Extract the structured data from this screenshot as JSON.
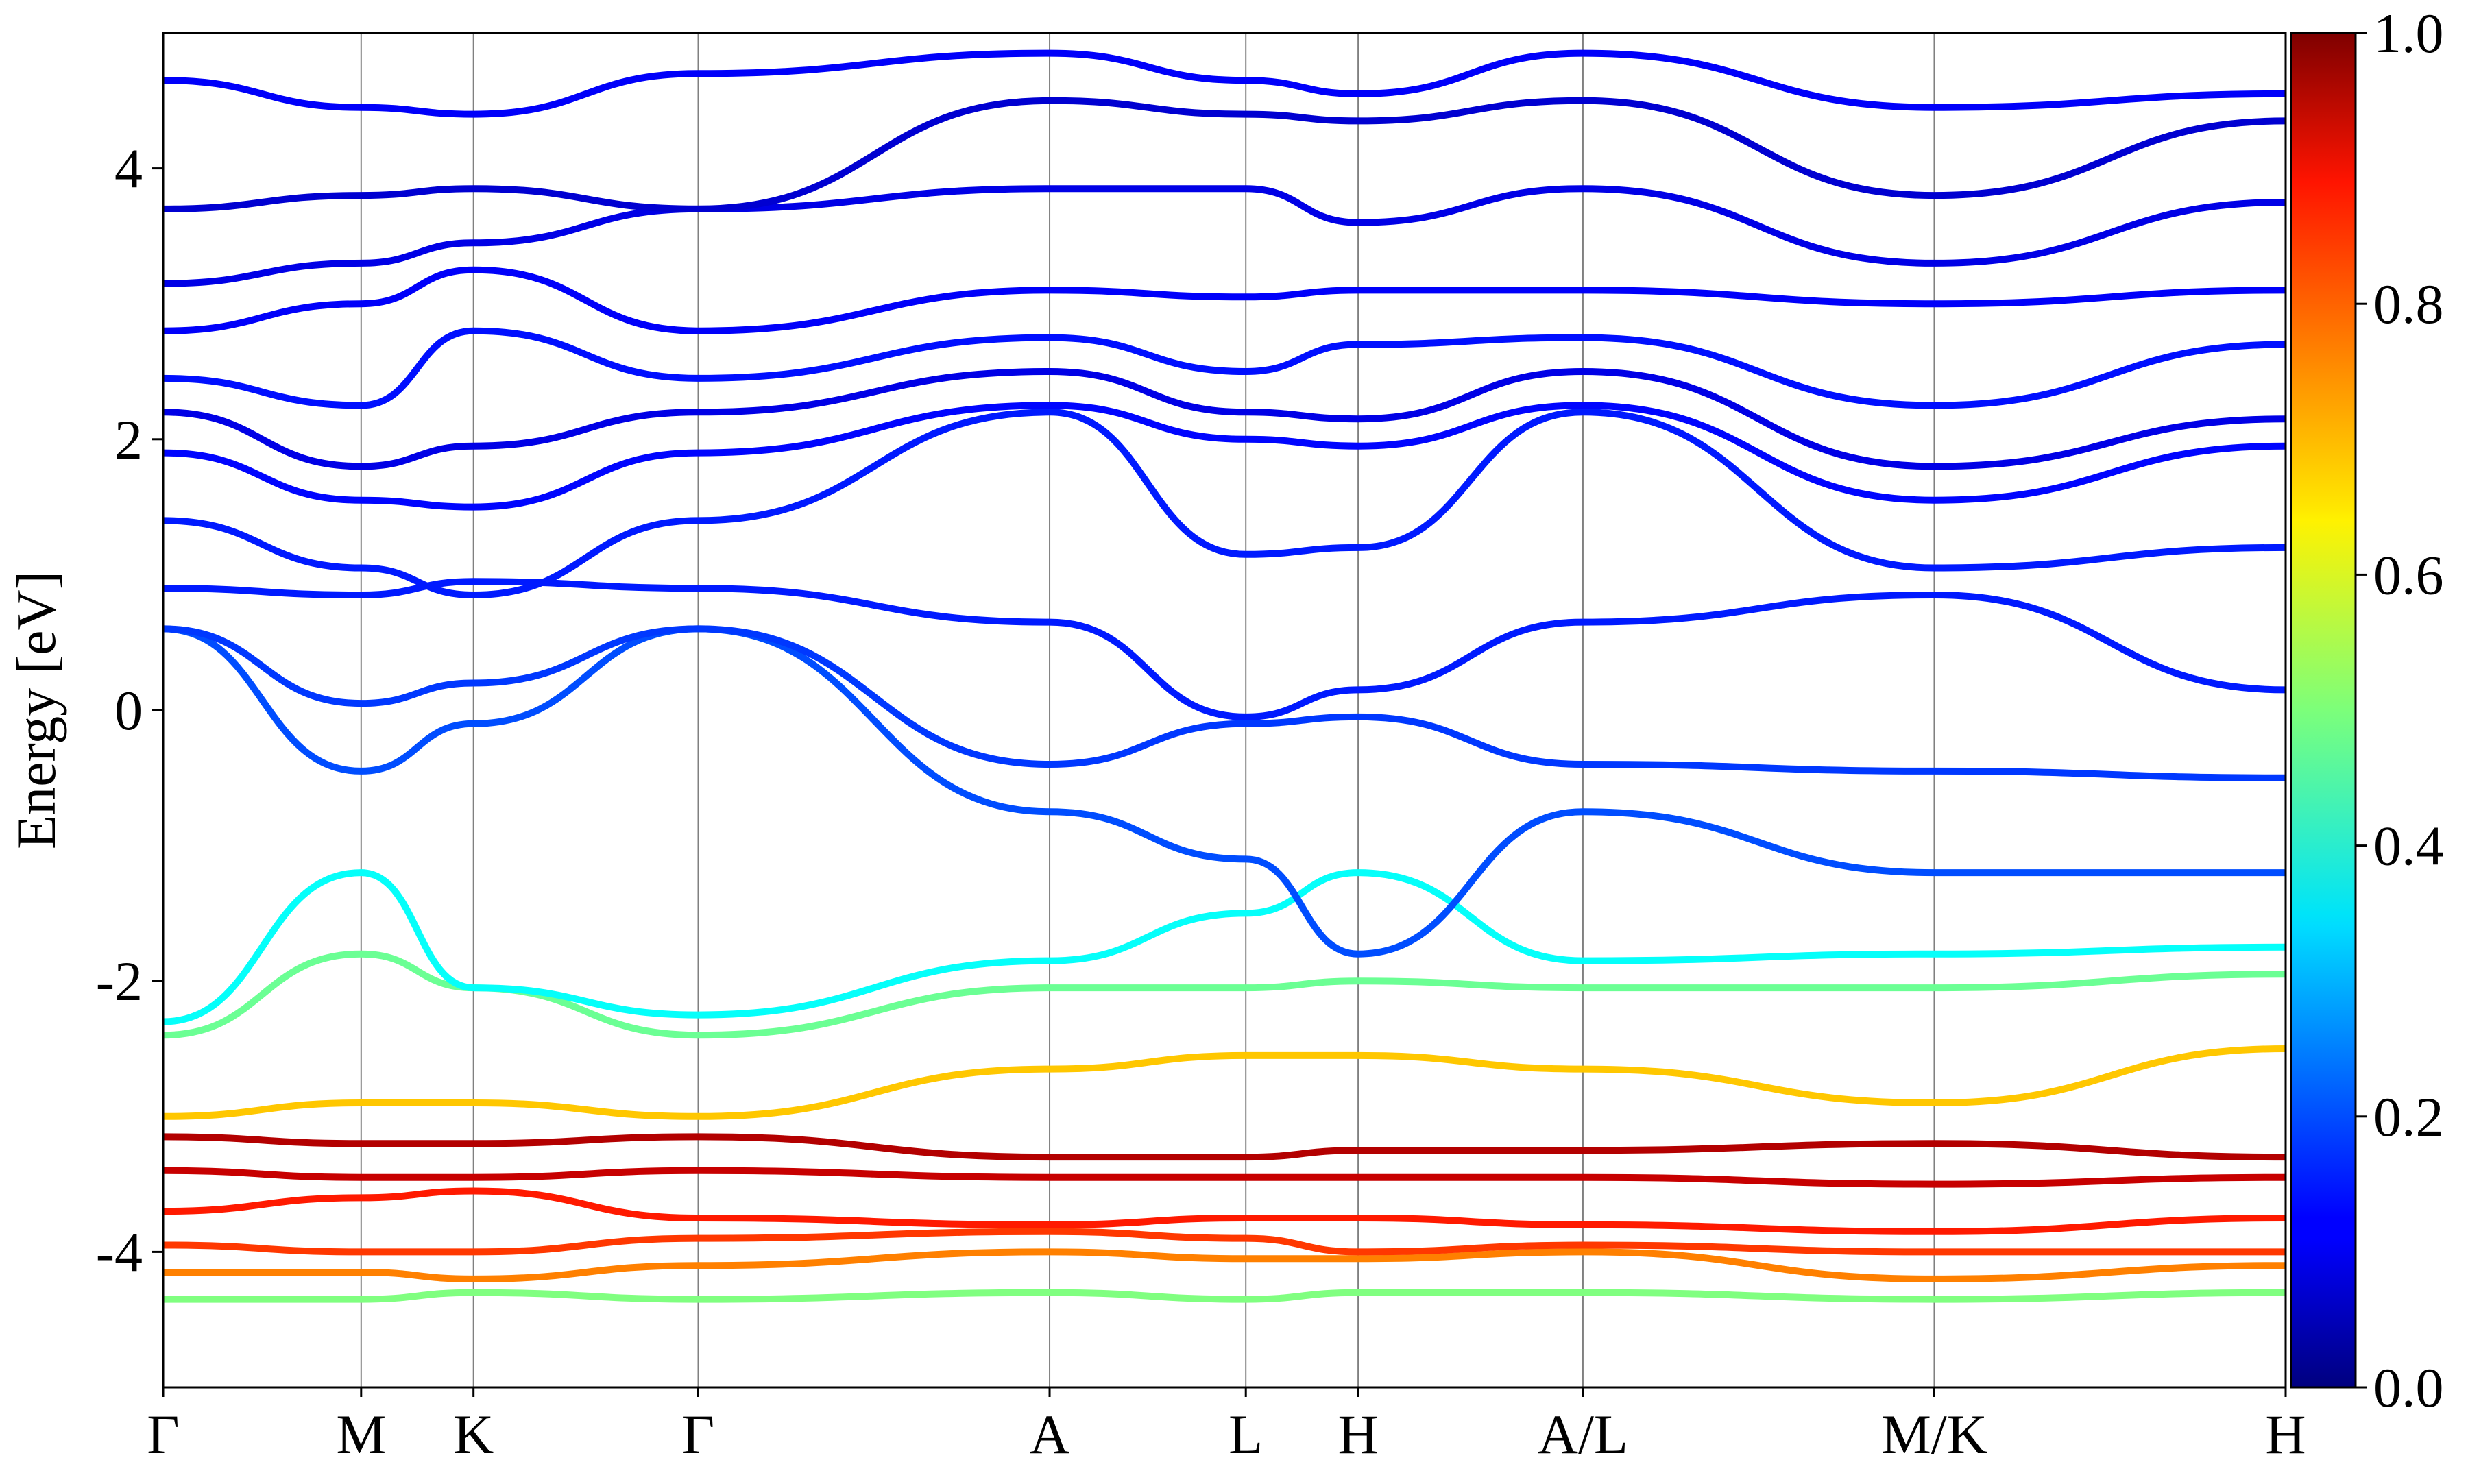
{
  "chart_data": {
    "type": "line",
    "title": "",
    "xlabel": "",
    "ylabel": "Energy [eV]",
    "ylim": [
      -5,
      5
    ],
    "xlim": [
      0,
      11.9
    ],
    "yticks": [
      -4,
      -2,
      0,
      2,
      4
    ],
    "ytick_labels": [
      "-4",
      "-2",
      "0",
      "2",
      "4"
    ],
    "kpoints": [
      {
        "label": "Γ",
        "x": 0
      },
      {
        "label": "M",
        "x": 1.11
      },
      {
        "label": "K",
        "x": 1.74
      },
      {
        "label": "Γ",
        "x": 3.0
      },
      {
        "label": "A",
        "x": 4.97
      },
      {
        "label": "L",
        "x": 6.07
      },
      {
        "label": "H",
        "x": 6.7
      },
      {
        "label": "A/L",
        "x": 7.96
      },
      {
        "label": "M/K",
        "x": 9.93
      },
      {
        "label": "H",
        "x": 11.9
      }
    ],
    "colorbar": {
      "colormap": "jet",
      "range": [
        0,
        1
      ],
      "ticks": [
        0,
        0.2,
        0.4,
        0.6,
        0.8,
        1
      ],
      "tick_labels": [
        "0.0",
        "0.2",
        "0.4",
        "0.6",
        "0.8",
        "1.0"
      ]
    },
    "bands": [
      {
        "x": [
          0,
          1.11,
          1.74,
          3.0,
          4.97,
          6.07,
          6.7,
          7.96,
          9.93,
          11.9
        ],
        "y": [
          -4.35,
          -4.35,
          -4.3,
          -4.35,
          -4.3,
          -4.35,
          -4.3,
          -4.3,
          -4.35,
          -4.3
        ],
        "weight": 0.5
      },
      {
        "x": [
          0,
          1.11,
          1.74,
          3.0,
          4.97,
          6.07,
          6.7,
          7.96,
          9.93,
          11.9
        ],
        "y": [
          -4.15,
          -4.15,
          -4.2,
          -4.1,
          -4.0,
          -4.05,
          -4.05,
          -4.0,
          -4.2,
          -4.1
        ],
        "weight": 0.75
      },
      {
        "x": [
          0,
          1.11,
          1.74,
          3.0,
          4.97,
          6.07,
          6.7,
          7.96,
          9.93,
          11.9
        ],
        "y": [
          -3.95,
          -4.0,
          -4.0,
          -3.9,
          -3.85,
          -3.9,
          -4.0,
          -3.95,
          -4.0,
          -4.0
        ],
        "weight": 0.82
      },
      {
        "x": [
          0,
          1.11,
          1.74,
          3.0,
          4.97,
          6.07,
          6.7,
          7.96,
          9.93,
          11.9
        ],
        "y": [
          -3.7,
          -3.6,
          -3.55,
          -3.75,
          -3.8,
          -3.75,
          -3.75,
          -3.8,
          -3.85,
          -3.75
        ],
        "weight": 0.85
      },
      {
        "x": [
          0,
          1.11,
          1.74,
          3.0,
          4.97,
          6.07,
          6.7,
          7.96,
          9.93,
          11.9
        ],
        "y": [
          -3.4,
          -3.45,
          -3.45,
          -3.4,
          -3.45,
          -3.45,
          -3.45,
          -3.45,
          -3.5,
          -3.45
        ],
        "weight": 0.93
      },
      {
        "x": [
          0,
          1.11,
          1.74,
          3.0,
          4.97,
          6.07,
          6.7,
          7.96,
          9.93,
          11.9
        ],
        "y": [
          -3.15,
          -3.2,
          -3.2,
          -3.15,
          -3.3,
          -3.3,
          -3.25,
          -3.25,
          -3.2,
          -3.3
        ],
        "weight": 0.95
      },
      {
        "x": [
          0,
          1.11,
          1.74,
          3.0,
          4.97,
          6.07,
          6.7,
          7.96,
          9.93,
          11.9
        ],
        "y": [
          -3.0,
          -2.9,
          -2.9,
          -3.0,
          -2.65,
          -2.55,
          -2.55,
          -2.65,
          -2.9,
          -2.5
        ],
        "weight": 0.68
      },
      {
        "x": [
          0,
          1.11,
          1.74,
          3.0,
          4.97,
          6.07,
          6.7,
          7.96,
          9.93,
          11.9
        ],
        "y": [
          -2.4,
          -1.8,
          -2.05,
          -2.4,
          -2.05,
          -2.05,
          -2.0,
          -2.05,
          -2.05,
          -1.95
        ],
        "weight": 0.48
      },
      {
        "x": [
          0,
          1.11,
          1.74,
          3.0,
          4.97,
          6.07,
          6.7,
          7.96,
          9.93,
          11.9
        ],
        "y": [
          -2.3,
          -1.2,
          -2.05,
          -2.25,
          -1.85,
          -1.5,
          -1.2,
          -1.85,
          -1.8,
          -1.75
        ],
        "weight": 0.38
      },
      {
        "x": [
          0,
          1.11,
          1.74,
          3.0,
          4.97,
          6.07,
          6.7,
          7.96,
          9.93,
          11.9
        ],
        "y": [
          0.6,
          -0.45,
          -0.1,
          0.6,
          -0.75,
          -1.1,
          -1.8,
          -0.75,
          -1.2,
          -1.2
        ],
        "weight": 0.2
      },
      {
        "x": [
          0,
          1.11,
          1.74,
          3.0,
          4.97,
          6.07,
          6.7,
          7.96,
          9.93,
          11.9
        ],
        "y": [
          0.6,
          0.05,
          0.2,
          0.6,
          -0.4,
          -0.1,
          -0.05,
          -0.4,
          -0.45,
          -0.5
        ],
        "weight": 0.18
      },
      {
        "x": [
          0,
          1.11,
          1.74,
          3.0,
          4.97,
          6.07,
          6.7,
          7.96,
          9.93,
          11.9
        ],
        "y": [
          0.9,
          0.85,
          0.95,
          0.9,
          0.65,
          -0.05,
          0.15,
          0.65,
          0.85,
          0.15
        ],
        "weight": 0.15
      },
      {
        "x": [
          0,
          1.11,
          1.74,
          3.0,
          4.97,
          6.07,
          6.7,
          7.96,
          9.93,
          11.9
        ],
        "y": [
          1.4,
          1.05,
          0.85,
          1.4,
          2.2,
          1.15,
          1.2,
          2.2,
          1.05,
          1.2
        ],
        "weight": 0.15
      },
      {
        "x": [
          0,
          1.11,
          1.74,
          3.0,
          4.97,
          6.07,
          6.7,
          7.96,
          9.93,
          11.9
        ],
        "y": [
          1.9,
          1.55,
          1.5,
          1.9,
          2.25,
          2.0,
          1.95,
          2.25,
          1.55,
          1.95
        ],
        "weight": 0.13
      },
      {
        "x": [
          0,
          1.11,
          1.74,
          3.0,
          4.97,
          6.07,
          6.7,
          7.96,
          9.93,
          11.9
        ],
        "y": [
          2.2,
          1.8,
          1.95,
          2.2,
          2.5,
          2.2,
          2.15,
          2.5,
          1.8,
          2.15
        ],
        "weight": 0.1
      },
      {
        "x": [
          0,
          1.11,
          1.74,
          3.0,
          4.97,
          6.07,
          6.7,
          7.96,
          9.93,
          11.9
        ],
        "y": [
          2.45,
          2.25,
          2.8,
          2.45,
          2.75,
          2.5,
          2.7,
          2.75,
          2.25,
          2.7
        ],
        "weight": 0.14
      },
      {
        "x": [
          0,
          1.11,
          1.74,
          3.0,
          4.97,
          6.07,
          6.7,
          7.96,
          9.93,
          11.9
        ],
        "y": [
          2.8,
          3.0,
          3.25,
          2.8,
          3.1,
          3.05,
          3.1,
          3.1,
          3.0,
          3.1
        ],
        "weight": 0.12
      },
      {
        "x": [
          0,
          1.11,
          1.74,
          3.0,
          4.97,
          6.07,
          6.7,
          7.96,
          9.93,
          11.9
        ],
        "y": [
          3.15,
          3.3,
          3.45,
          3.7,
          3.85,
          3.85,
          3.6,
          3.85,
          3.3,
          3.75
        ],
        "weight": 0.1
      },
      {
        "x": [
          0,
          1.11,
          1.74,
          3.0,
          4.97,
          6.07,
          6.7,
          7.96,
          9.93,
          11.9
        ],
        "y": [
          3.7,
          3.8,
          3.85,
          3.7,
          4.5,
          4.4,
          4.35,
          4.5,
          3.8,
          4.35
        ],
        "weight": 0.08
      },
      {
        "x": [
          0,
          1.11,
          1.74,
          3.0,
          4.97,
          6.07,
          6.7,
          7.96,
          9.93,
          11.9
        ],
        "y": [
          4.65,
          4.45,
          4.4,
          4.7,
          4.85,
          4.65,
          4.55,
          4.85,
          4.45,
          4.55
        ],
        "weight": 0.12
      }
    ]
  }
}
